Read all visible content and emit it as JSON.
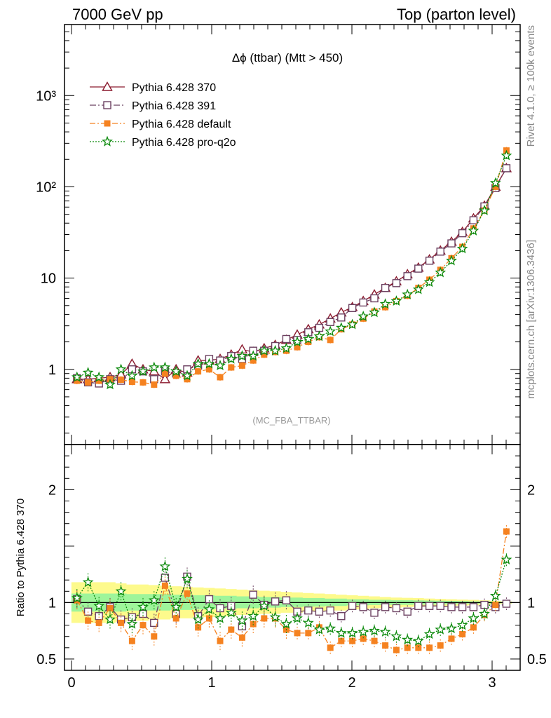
{
  "header": {
    "left": "7000 GeV pp",
    "right": "Top (parton level)"
  },
  "side_labels": {
    "rivet": "Rivet 4.1.0, ≥ 100k events",
    "mcplots": "mcplots.cern.ch [arXiv:1306.3436]"
  },
  "chart_data": {
    "type": "line",
    "title": "Δϕ (ttbar) (Mtt > 450)",
    "watermark": "(MC_FBA_TTBAR)",
    "xlim": [
      -0.05,
      3.2
    ],
    "x_ticks": [
      "0",
      "1",
      "2",
      "3"
    ],
    "main": {
      "yscale": "log",
      "ylim": [
        0.15,
        6000
      ],
      "y_tick_labels": [
        "1",
        "10",
        "10²",
        "10³"
      ],
      "ylabel": ""
    },
    "ratio": {
      "ylabel": "Ratio to Pythia 6.428 370",
      "ylim": [
        0.4,
        2.4
      ],
      "y_tick_labels": [
        "0.5",
        "1",
        "2"
      ]
    },
    "x": [
      0.039,
      0.118,
      0.196,
      0.275,
      0.353,
      0.432,
      0.51,
      0.589,
      0.667,
      0.746,
      0.825,
      0.903,
      0.982,
      1.06,
      1.139,
      1.217,
      1.296,
      1.374,
      1.453,
      1.532,
      1.61,
      1.689,
      1.767,
      1.846,
      1.924,
      2.003,
      2.081,
      2.16,
      2.238,
      2.317,
      2.396,
      2.474,
      2.553,
      2.631,
      2.71,
      2.788,
      2.867,
      2.945,
      3.024,
      3.102
    ],
    "band_inner": [
      [
        0.92,
        1.08
      ],
      [
        0.92,
        1.08
      ],
      [
        0.92,
        1.08
      ],
      [
        0.92,
        1.08
      ],
      [
        0.92,
        1.08
      ],
      [
        0.93,
        1.075
      ],
      [
        0.93,
        1.075
      ],
      [
        0.93,
        1.075
      ],
      [
        0.93,
        1.075
      ],
      [
        0.935,
        1.07
      ],
      [
        0.935,
        1.07
      ],
      [
        0.94,
        1.065
      ],
      [
        0.94,
        1.065
      ],
      [
        0.945,
        1.06
      ],
      [
        0.945,
        1.06
      ],
      [
        0.95,
        1.055
      ],
      [
        0.95,
        1.055
      ],
      [
        0.955,
        1.05
      ],
      [
        0.955,
        1.05
      ],
      [
        0.96,
        1.045
      ],
      [
        0.96,
        1.045
      ],
      [
        0.965,
        1.04
      ],
      [
        0.965,
        1.04
      ],
      [
        0.97,
        1.035
      ],
      [
        0.97,
        1.035
      ],
      [
        0.975,
        1.03
      ],
      [
        0.975,
        1.03
      ],
      [
        0.978,
        1.025
      ],
      [
        0.978,
        1.025
      ],
      [
        0.98,
        1.022
      ],
      [
        0.98,
        1.022
      ],
      [
        0.982,
        1.02
      ],
      [
        0.983,
        1.018
      ],
      [
        0.985,
        1.016
      ],
      [
        0.986,
        1.015
      ],
      [
        0.988,
        1.013
      ],
      [
        0.99,
        1.011
      ],
      [
        0.991,
        1.01
      ],
      [
        0.993,
        1.008
      ],
      [
        0.994,
        1.006
      ]
    ],
    "band_outer": [
      [
        0.82,
        1.18
      ],
      [
        0.82,
        1.18
      ],
      [
        0.82,
        1.18
      ],
      [
        0.82,
        1.18
      ],
      [
        0.83,
        1.17
      ],
      [
        0.84,
        1.16
      ],
      [
        0.84,
        1.16
      ],
      [
        0.85,
        1.155
      ],
      [
        0.85,
        1.15
      ],
      [
        0.86,
        1.145
      ],
      [
        0.86,
        1.14
      ],
      [
        0.87,
        1.135
      ],
      [
        0.87,
        1.13
      ],
      [
        0.88,
        1.125
      ],
      [
        0.88,
        1.12
      ],
      [
        0.89,
        1.115
      ],
      [
        0.89,
        1.11
      ],
      [
        0.9,
        1.105
      ],
      [
        0.9,
        1.1
      ],
      [
        0.91,
        1.095
      ],
      [
        0.91,
        1.09
      ],
      [
        0.92,
        1.085
      ],
      [
        0.92,
        1.08
      ],
      [
        0.93,
        1.075
      ],
      [
        0.93,
        1.07
      ],
      [
        0.94,
        1.065
      ],
      [
        0.94,
        1.06
      ],
      [
        0.95,
        1.055
      ],
      [
        0.95,
        1.05
      ],
      [
        0.955,
        1.045
      ],
      [
        0.96,
        1.042
      ],
      [
        0.962,
        1.04
      ],
      [
        0.965,
        1.036
      ],
      [
        0.968,
        1.033
      ],
      [
        0.97,
        1.03
      ],
      [
        0.973,
        1.027
      ],
      [
        0.976,
        1.024
      ],
      [
        0.98,
        1.02
      ],
      [
        0.985,
        1.015
      ],
      [
        0.99,
        1.01
      ]
    ],
    "series": [
      {
        "name": "Pythia 6.428 370",
        "color": "#8b1a2e",
        "marker": "triangle",
        "dash": "",
        "values": [
          0.78,
          0.78,
          0.8,
          0.82,
          0.88,
          1.15,
          1.0,
          0.95,
          0.78,
          1.0,
          0.92,
          1.25,
          1.25,
          1.3,
          1.45,
          1.65,
          1.55,
          1.7,
          1.85,
          2.1,
          2.4,
          2.75,
          3.1,
          3.6,
          4.2,
          4.8,
          5.6,
          6.6,
          7.8,
          9.2,
          11.0,
          13.0,
          16.0,
          20.0,
          25.0,
          32.0,
          45.0,
          62.0,
          100.0,
          160.0
        ],
        "ratio": [
          1.0,
          1.0,
          1.0,
          1.0,
          1.0,
          1.0,
          1.0,
          1.0,
          1.0,
          1.0,
          1.0,
          1.0,
          1.0,
          1.0,
          1.0,
          1.0,
          1.0,
          1.0,
          1.0,
          1.0,
          1.0,
          1.0,
          1.0,
          1.0,
          1.0,
          1.0,
          1.0,
          1.0,
          1.0,
          1.0,
          1.0,
          1.0,
          1.0,
          1.0,
          1.0,
          1.0,
          1.0,
          1.0,
          1.0,
          1.0
        ]
      },
      {
        "name": "Pythia 6.428 391",
        "color": "#6b4060",
        "marker": "square",
        "dash": "9,3,2,3",
        "values": [
          0.8,
          0.72,
          0.7,
          0.78,
          0.75,
          1.0,
          0.95,
          0.78,
          0.95,
          0.9,
          1.0,
          1.1,
          1.3,
          1.25,
          1.4,
          1.3,
          1.6,
          1.6,
          1.8,
          2.15,
          2.1,
          2.55,
          2.85,
          3.3,
          3.7,
          4.7,
          5.4,
          6.0,
          7.8,
          8.8,
          10.5,
          12.7,
          15.5,
          19.5,
          24.0,
          31.0,
          43.0,
          61.0,
          97.0,
          160.0
        ],
        "ratio": [
          1.03,
          0.92,
          0.88,
          0.96,
          0.85,
          0.87,
          0.9,
          0.82,
          1.22,
          0.9,
          1.23,
          0.88,
          1.03,
          0.95,
          0.97,
          0.79,
          1.07,
          0.98,
          1.01,
          1.02,
          0.92,
          0.93,
          0.92,
          0.93,
          0.88,
          0.97,
          0.96,
          0.91,
          0.96,
          0.95,
          0.92,
          0.97,
          0.97,
          0.97,
          0.96,
          0.96,
          0.96,
          0.98,
          0.96,
          0.99
        ]
      },
      {
        "name": "Pythia 6.428 default",
        "color": "#f58220",
        "marker": "filled-square",
        "dash": "8,3,2,3",
        "values": [
          0.75,
          0.72,
          0.75,
          0.78,
          0.77,
          0.73,
          0.72,
          0.68,
          0.9,
          0.85,
          0.78,
          0.95,
          1.0,
          0.82,
          1.05,
          1.1,
          1.25,
          1.45,
          1.55,
          1.6,
          1.75,
          2.0,
          2.25,
          2.1,
          2.75,
          3.1,
          3.6,
          4.3,
          4.8,
          5.6,
          6.4,
          7.8,
          9.6,
          12.3,
          16.5,
          22.0,
          35.0,
          55.0,
          100.0,
          250.0
        ],
        "ratio": [
          1.02,
          0.84,
          0.82,
          0.95,
          0.82,
          0.66,
          0.8,
          0.7,
          1.15,
          0.86,
          1.08,
          0.78,
          0.86,
          0.66,
          0.76,
          0.69,
          0.81,
          0.86,
          0.86,
          0.76,
          0.73,
          0.73,
          0.78,
          0.6,
          0.66,
          0.66,
          0.68,
          0.66,
          0.62,
          0.58,
          0.6,
          0.6,
          0.6,
          0.62,
          0.68,
          0.72,
          0.78,
          0.89,
          0.98,
          1.63
        ]
      },
      {
        "name": "Pythia 6.428 pro-q2o",
        "color": "#0c8a0c",
        "marker": "star",
        "dash": "2,2",
        "values": [
          0.82,
          0.92,
          0.82,
          0.68,
          1.0,
          0.85,
          0.95,
          1.05,
          1.05,
          0.95,
          0.85,
          1.15,
          1.15,
          1.1,
          1.3,
          1.4,
          1.4,
          1.6,
          1.6,
          1.7,
          2.0,
          2.15,
          2.3,
          2.6,
          2.85,
          3.1,
          3.8,
          4.2,
          5.2,
          5.6,
          6.6,
          7.5,
          9.0,
          11.5,
          15.5,
          21.0,
          33.0,
          55.0,
          110.0,
          220.0
        ],
        "ratio": [
          1.04,
          1.18,
          0.97,
          0.85,
          1.1,
          0.81,
          0.96,
          1.02,
          1.32,
          0.96,
          1.21,
          0.85,
          0.94,
          0.86,
          0.91,
          0.84,
          0.88,
          0.97,
          0.87,
          0.81,
          0.86,
          0.82,
          0.76,
          0.77,
          0.73,
          0.73,
          0.74,
          0.75,
          0.74,
          0.7,
          0.67,
          0.66,
          0.72,
          0.76,
          0.77,
          0.8,
          0.86,
          0.9,
          1.06,
          1.38
        ]
      }
    ]
  }
}
